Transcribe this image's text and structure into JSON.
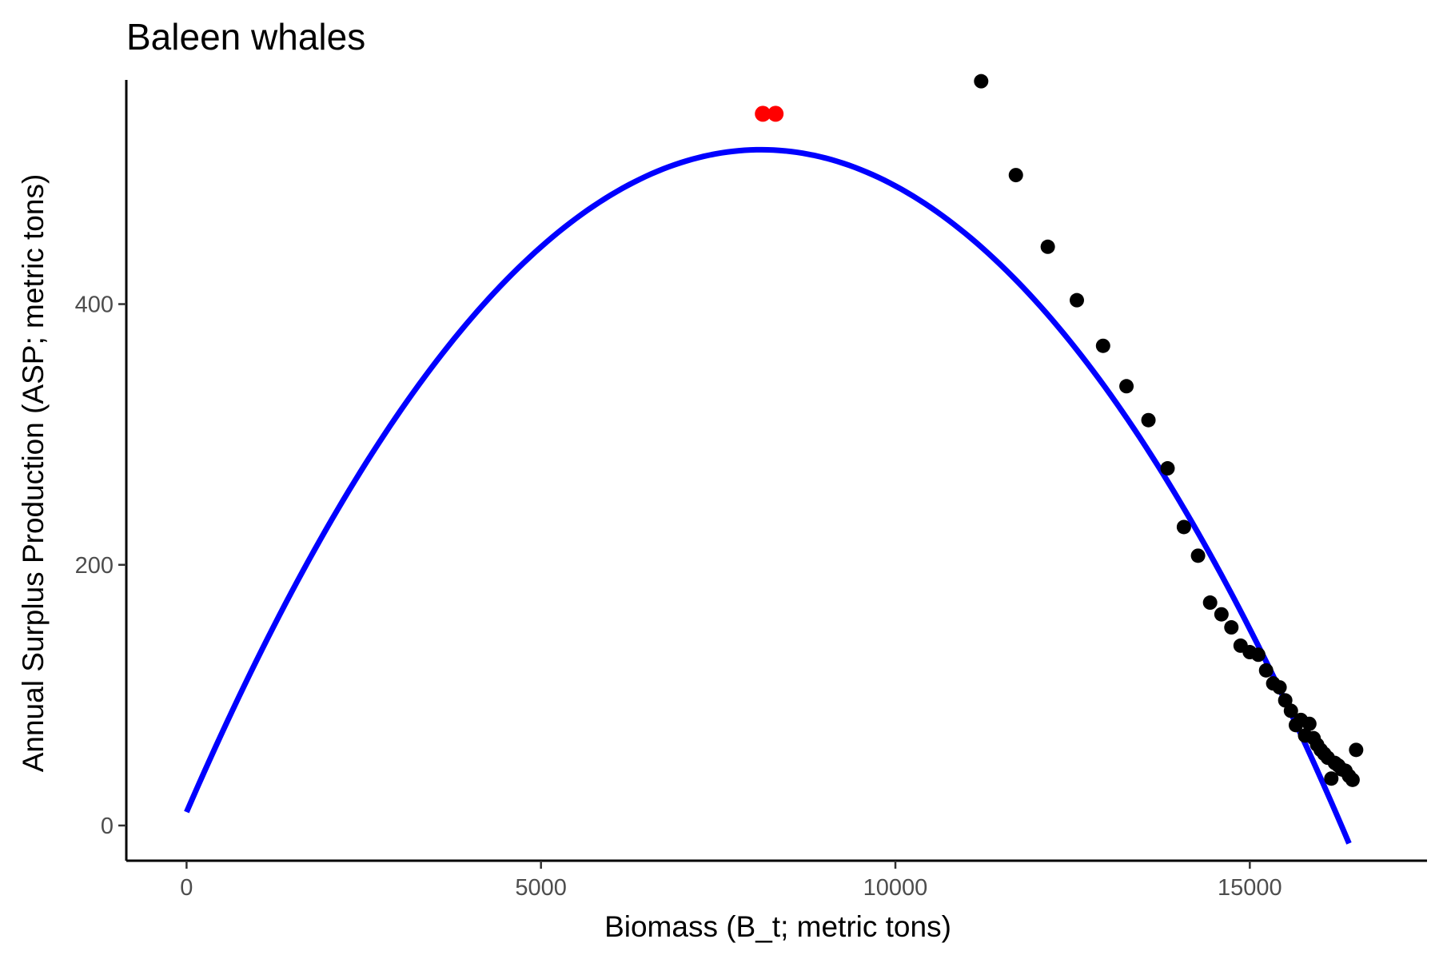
{
  "chart_data": {
    "type": "scatter",
    "title": "Baleen whales",
    "xlabel": "Biomass (B_t; metric tons)",
    "ylabel": "Annual Surplus Production (ASP; metric tons)",
    "xlim": [
      -850,
      17500
    ],
    "ylim": [
      -27,
      572
    ],
    "x_ticks": [
      0,
      5000,
      10000,
      15000
    ],
    "x_tick_labels": [
      "0",
      "5000",
      "10000",
      "15000"
    ],
    "y_ticks": [
      0,
      200,
      400
    ],
    "y_tick_labels": [
      "0",
      "200",
      "400"
    ],
    "grid": false,
    "legend": "none",
    "series": [
      {
        "kind": "curve",
        "color": "#0000ff",
        "model": "quadratic",
        "x": [
          0,
          1000,
          2000,
          3000,
          4000,
          5000,
          6000,
          7000,
          8000,
          8200,
          9000,
          10000,
          11000,
          12000,
          13000,
          14000,
          15000,
          16000,
          16400
        ],
        "y": [
          0,
          126,
          232,
          322,
          393,
          446,
          483,
          505,
          530,
          532,
          525,
          489,
          437,
          389,
          315,
          241,
          148,
          48,
          0
        ]
      },
      {
        "kind": "points",
        "color": "#ff0000",
        "x": [
          8130,
          8310
        ],
        "y": [
          546,
          546
        ]
      },
      {
        "kind": "points",
        "color": "#000000",
        "x": [
          11210,
          11700,
          12150,
          12560,
          12930,
          13260,
          13570,
          13840,
          14070,
          14270,
          14440,
          14600,
          14740,
          14870,
          15000,
          15120,
          15230,
          15330,
          15420,
          15500,
          15580,
          15650,
          15720,
          15780,
          15840,
          15900,
          15950,
          16000,
          16050,
          16100,
          16150,
          16200,
          16250,
          16300,
          16350,
          16400,
          16450,
          16500
        ],
        "y": [
          571,
          499,
          444,
          403,
          368,
          337,
          311,
          274,
          229,
          207,
          171,
          162,
          152,
          138,
          133,
          131,
          119,
          109,
          106,
          96,
          88,
          77,
          81,
          69,
          78,
          67,
          62,
          58,
          55,
          52,
          36,
          48,
          46,
          43,
          42,
          38,
          35,
          58
        ]
      }
    ]
  }
}
